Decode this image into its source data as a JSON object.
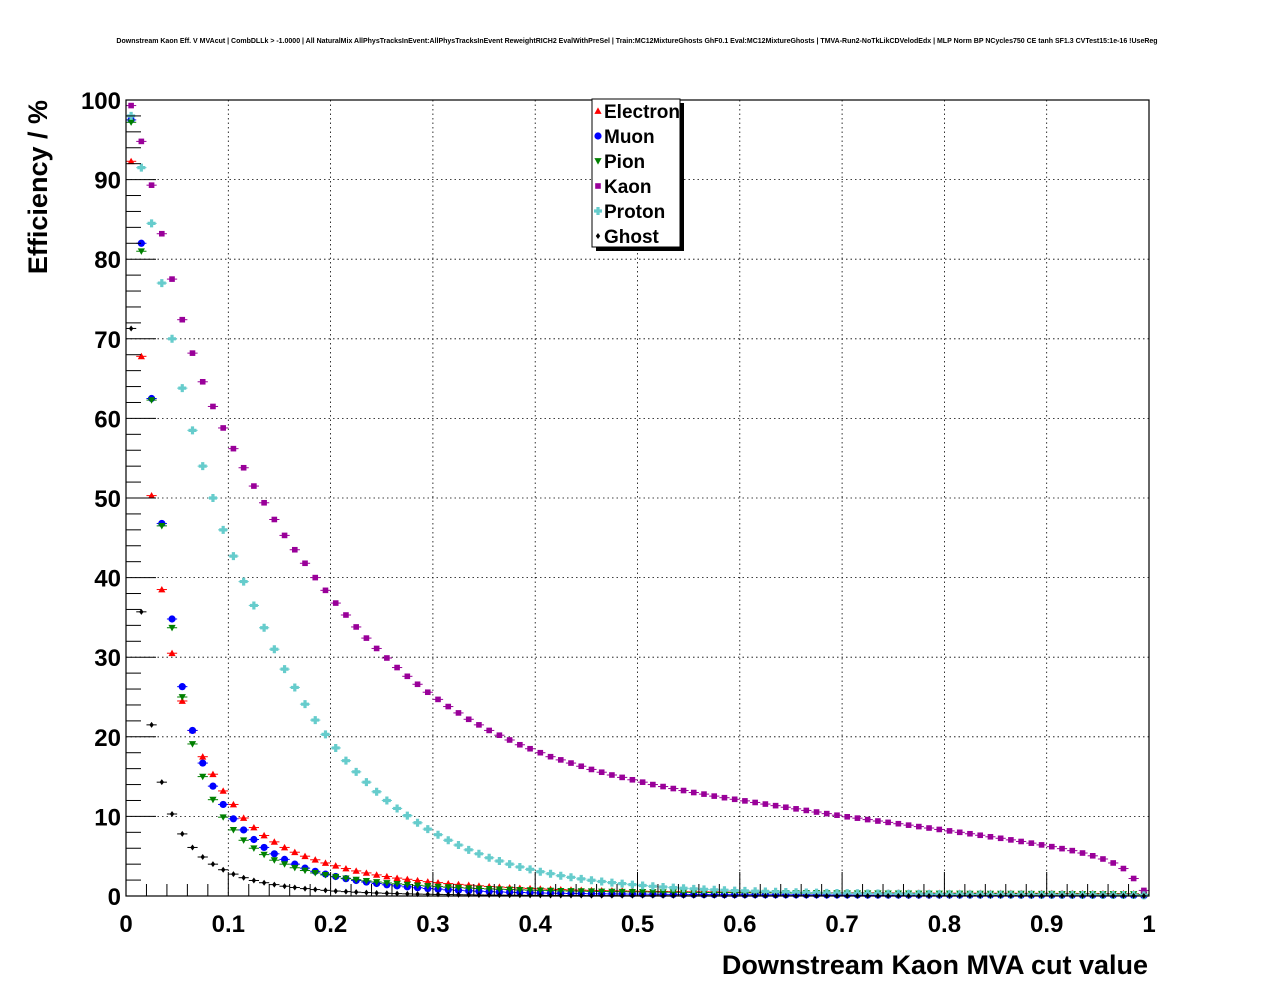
{
  "chart_data": {
    "type": "scatter",
    "title": "Downstream Kaon Eff. V MVAcut | CombDLLk > -1.0000 | All NaturalMix AllPhysTracksInEvent:AllPhysTracksInEvent ReweightRICH2 EvalWithPreSel | Train:MC12MixtureGhosts GhF0.1 Eval:MC12MixtureGhosts | TMVA-Run2-NoTkLikCDVelodEdx | MLP Norm BP NCycles750 CE tanh SF1.3 CVTest15:1e-16 !UseReg",
    "xlabel": "Downstream Kaon MVA cut value",
    "ylabel": "Efficiency / %",
    "xlim": [
      0,
      1
    ],
    "ylim": [
      0,
      100
    ],
    "x_ticks": [
      "0",
      "0.1",
      "0.2",
      "0.3",
      "0.4",
      "0.5",
      "0.6",
      "0.7",
      "0.8",
      "0.9",
      "1"
    ],
    "y_ticks": [
      "0",
      "10",
      "20",
      "30",
      "40",
      "50",
      "60",
      "70",
      "80",
      "90",
      "100"
    ],
    "grid": true,
    "legend_position": "top-center",
    "x": [
      0.005,
      0.015,
      0.025,
      0.035,
      0.045,
      0.055,
      0.065,
      0.075,
      0.085,
      0.095,
      0.105,
      0.115,
      0.125,
      0.135,
      0.145,
      0.155,
      0.165,
      0.175,
      0.185,
      0.195,
      0.205,
      0.215,
      0.225,
      0.235,
      0.245,
      0.255,
      0.265,
      0.275,
      0.285,
      0.295,
      0.305,
      0.315,
      0.325,
      0.335,
      0.345,
      0.355,
      0.365,
      0.375,
      0.385,
      0.395,
      0.405,
      0.415,
      0.425,
      0.435,
      0.445,
      0.455,
      0.465,
      0.475,
      0.485,
      0.495,
      0.505,
      0.515,
      0.525,
      0.535,
      0.545,
      0.555,
      0.565,
      0.575,
      0.585,
      0.595,
      0.605,
      0.615,
      0.625,
      0.635,
      0.645,
      0.655,
      0.665,
      0.675,
      0.685,
      0.695,
      0.705,
      0.715,
      0.725,
      0.735,
      0.745,
      0.755,
      0.765,
      0.775,
      0.785,
      0.795,
      0.805,
      0.815,
      0.825,
      0.835,
      0.845,
      0.855,
      0.865,
      0.875,
      0.885,
      0.895,
      0.905,
      0.915,
      0.925,
      0.935,
      0.945,
      0.955,
      0.965,
      0.975,
      0.985,
      0.995
    ],
    "series": [
      {
        "name": "Electron",
        "color": "#ff0000",
        "marker": "triangle-up",
        "values": [
          92.3,
          67.8,
          50.3,
          38.5,
          30.5,
          24.5,
          20.8,
          17.5,
          15.3,
          13.2,
          11.5,
          9.8,
          8.6,
          7.6,
          6.8,
          6.1,
          5.5,
          5.0,
          4.55,
          4.15,
          3.8,
          3.45,
          3.15,
          2.9,
          2.65,
          2.45,
          2.25,
          2.1,
          1.95,
          1.8,
          1.68,
          1.56,
          1.46,
          1.37,
          1.28,
          1.2,
          1.13,
          1.06,
          1.0,
          0.95,
          0.9,
          0.85,
          0.81,
          0.77,
          0.74,
          0.71,
          0.68,
          0.66,
          0.64,
          0.62,
          0.6,
          0.58,
          0.57,
          0.55,
          0.54,
          0.53,
          0.52,
          0.51,
          0.5,
          0.49,
          0.48,
          0.47,
          0.46,
          0.45,
          0.45,
          0.44,
          0.43,
          0.43,
          0.42,
          0.42,
          0.41,
          0.41,
          0.4,
          0.4,
          0.39,
          0.39,
          0.38,
          0.38,
          0.38,
          0.37,
          0.37,
          0.36,
          0.36,
          0.36,
          0.35,
          0.35,
          0.35,
          0.34,
          0.34,
          0.34,
          0.33,
          0.33,
          0.33,
          0.32,
          0.32,
          0.32,
          0.31,
          0.31,
          0.3,
          0.2
        ]
      },
      {
        "name": "Muon",
        "color": "#0000ff",
        "marker": "circle",
        "values": [
          97.5,
          82.0,
          62.5,
          46.8,
          34.8,
          26.3,
          20.8,
          16.7,
          13.8,
          11.5,
          9.7,
          8.3,
          7.1,
          6.1,
          5.3,
          4.6,
          4.0,
          3.5,
          3.1,
          2.75,
          2.45,
          2.18,
          1.95,
          1.75,
          1.57,
          1.41,
          1.27,
          1.15,
          1.04,
          0.94,
          0.86,
          0.78,
          0.71,
          0.65,
          0.6,
          0.55,
          0.51,
          0.47,
          0.44,
          0.41,
          0.38,
          0.36,
          0.34,
          0.32,
          0.3,
          0.28,
          0.27,
          0.26,
          0.25,
          0.24,
          0.23,
          0.22,
          0.21,
          0.2,
          0.2,
          0.19,
          0.18,
          0.18,
          0.17,
          0.17,
          0.16,
          0.16,
          0.15,
          0.15,
          0.15,
          0.14,
          0.14,
          0.14,
          0.13,
          0.13,
          0.13,
          0.13,
          0.12,
          0.12,
          0.12,
          0.12,
          0.11,
          0.11,
          0.11,
          0.11,
          0.11,
          0.1,
          0.1,
          0.1,
          0.1,
          0.1,
          0.1,
          0.09,
          0.09,
          0.09,
          0.09,
          0.09,
          0.09,
          0.08,
          0.08,
          0.08,
          0.08,
          0.08,
          0.07,
          0.05
        ]
      },
      {
        "name": "Pion",
        "color": "#008000",
        "marker": "triangle-down",
        "values": [
          97.2,
          81.0,
          62.3,
          46.5,
          33.7,
          25.0,
          19.1,
          15.0,
          12.1,
          9.9,
          8.3,
          7.0,
          6.0,
          5.2,
          4.5,
          4.0,
          3.55,
          3.2,
          2.9,
          2.65,
          2.42,
          2.22,
          2.05,
          1.9,
          1.76,
          1.64,
          1.53,
          1.43,
          1.34,
          1.26,
          1.18,
          1.11,
          1.05,
          0.99,
          0.94,
          0.89,
          0.85,
          0.81,
          0.77,
          0.74,
          0.71,
          0.68,
          0.65,
          0.63,
          0.61,
          0.59,
          0.57,
          0.55,
          0.54,
          0.52,
          0.51,
          0.5,
          0.48,
          0.47,
          0.46,
          0.45,
          0.44,
          0.43,
          0.43,
          0.42,
          0.41,
          0.4,
          0.4,
          0.39,
          0.38,
          0.38,
          0.37,
          0.37,
          0.36,
          0.36,
          0.35,
          0.35,
          0.34,
          0.34,
          0.33,
          0.33,
          0.33,
          0.32,
          0.32,
          0.31,
          0.31,
          0.31,
          0.3,
          0.3,
          0.3,
          0.29,
          0.29,
          0.29,
          0.28,
          0.28,
          0.28,
          0.27,
          0.27,
          0.27,
          0.26,
          0.26,
          0.26,
          0.25,
          0.25,
          0.18
        ]
      },
      {
        "name": "Kaon",
        "color": "#990099",
        "marker": "square",
        "values": [
          99.3,
          94.8,
          89.3,
          83.2,
          77.5,
          72.4,
          68.2,
          64.6,
          61.5,
          58.8,
          56.2,
          53.8,
          51.5,
          49.4,
          47.3,
          45.3,
          43.5,
          41.8,
          40.0,
          38.4,
          36.8,
          35.3,
          33.8,
          32.4,
          31.1,
          29.9,
          28.7,
          27.6,
          26.6,
          25.6,
          24.7,
          23.8,
          23.0,
          22.2,
          21.5,
          20.8,
          20.2,
          19.6,
          19.0,
          18.5,
          18.0,
          17.5,
          17.1,
          16.7,
          16.3,
          15.9,
          15.55,
          15.2,
          14.9,
          14.6,
          14.3,
          14.0,
          13.75,
          13.5,
          13.25,
          13.0,
          12.8,
          12.55,
          12.35,
          12.15,
          11.95,
          11.75,
          11.55,
          11.35,
          11.15,
          10.95,
          10.75,
          10.55,
          10.35,
          10.15,
          9.95,
          9.78,
          9.6,
          9.42,
          9.25,
          9.08,
          8.9,
          8.72,
          8.54,
          8.36,
          8.18,
          8.0,
          7.82,
          7.63,
          7.44,
          7.25,
          7.05,
          6.85,
          6.64,
          6.42,
          6.2,
          5.95,
          5.7,
          5.4,
          5.05,
          4.65,
          4.15,
          3.45,
          2.2,
          0.7
        ]
      },
      {
        "name": "Proton",
        "color": "#66cccc",
        "marker": "cross",
        "values": [
          98.0,
          91.5,
          84.5,
          77.0,
          70.0,
          63.8,
          58.5,
          54.0,
          50.0,
          46.0,
          42.7,
          39.5,
          36.5,
          33.7,
          31.0,
          28.5,
          26.2,
          24.1,
          22.1,
          20.3,
          18.6,
          17.0,
          15.6,
          14.3,
          13.1,
          12.0,
          11.0,
          10.1,
          9.2,
          8.4,
          7.7,
          7.0,
          6.4,
          5.8,
          5.3,
          4.8,
          4.4,
          4.0,
          3.65,
          3.35,
          3.05,
          2.8,
          2.55,
          2.35,
          2.15,
          1.98,
          1.82,
          1.68,
          1.55,
          1.43,
          1.32,
          1.22,
          1.13,
          1.05,
          0.97,
          0.9,
          0.84,
          0.78,
          0.73,
          0.68,
          0.64,
          0.6,
          0.56,
          0.53,
          0.5,
          0.47,
          0.44,
          0.42,
          0.4,
          0.38,
          0.36,
          0.34,
          0.32,
          0.31,
          0.29,
          0.28,
          0.27,
          0.26,
          0.25,
          0.24,
          0.23,
          0.22,
          0.21,
          0.2,
          0.19,
          0.19,
          0.18,
          0.17,
          0.17,
          0.16,
          0.16,
          0.15,
          0.15,
          0.14,
          0.14,
          0.13,
          0.13,
          0.12,
          0.12,
          0.08
        ]
      },
      {
        "name": "Ghost",
        "color": "#000000",
        "marker": "diamond",
        "values": [
          71.3,
          35.7,
          21.5,
          14.3,
          10.3,
          7.8,
          6.1,
          4.9,
          4.0,
          3.3,
          2.75,
          2.3,
          1.95,
          1.67,
          1.43,
          1.23,
          1.07,
          0.93,
          0.81,
          0.71,
          0.62,
          0.55,
          0.48,
          0.43,
          0.38,
          0.34,
          0.3,
          0.27,
          0.24,
          0.22,
          0.2,
          0.18,
          0.16,
          0.15,
          0.13,
          0.12,
          0.11,
          0.1,
          0.09,
          0.08,
          0.08,
          0.07,
          0.07,
          0.06,
          0.06,
          0.05,
          0.05,
          0.05,
          0.04,
          0.04,
          0.04,
          0.04,
          0.03,
          0.03,
          0.03,
          0.03,
          0.03,
          0.03,
          0.02,
          0.02,
          0.02,
          0.02,
          0.02,
          0.02,
          0.02,
          0.02,
          0.02,
          0.02,
          0.01,
          0.01,
          0.01,
          0.01,
          0.01,
          0.01,
          0.01,
          0.01,
          0.01,
          0.01,
          0.01,
          0.01,
          0.01,
          0.01,
          0.01,
          0.01,
          0.01,
          0.01,
          0.01,
          0.01,
          0.01,
          0.01,
          0.01,
          0.01,
          0.01,
          0.01,
          0.01,
          0.01,
          0.01,
          0.01,
          0.01,
          0.0
        ]
      }
    ]
  }
}
